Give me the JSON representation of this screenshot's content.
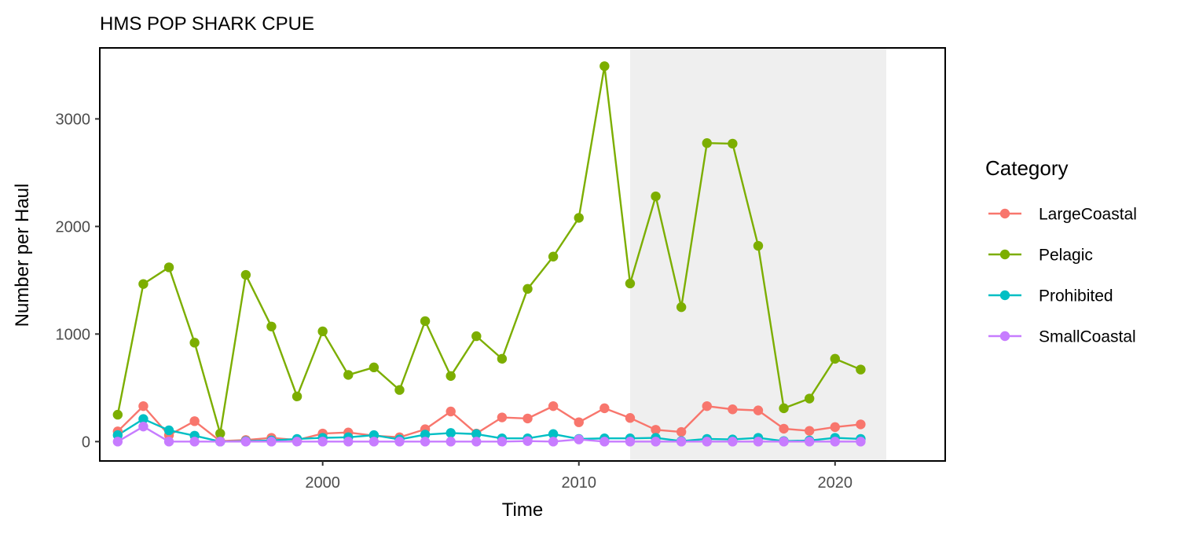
{
  "chart_data": {
    "type": "line",
    "title": "HMS POP SHARK CPUE",
    "xlabel": "Time",
    "ylabel": "Number per Haul",
    "xlim": [
      1991.3,
      2024.3
    ],
    "ylim": [
      -180,
      3660
    ],
    "x_ticks": [
      2000,
      2010,
      2020
    ],
    "y_ticks": [
      0,
      1000,
      2000,
      3000
    ],
    "grid": false,
    "shaded_region": {
      "x_start": 2012,
      "x_end": 2022,
      "color": "#efefef"
    },
    "legend": {
      "title": "Category",
      "position": "right"
    },
    "x": [
      1992,
      1993,
      1994,
      1995,
      1996,
      1997,
      1998,
      1999,
      2000,
      2001,
      2002,
      2003,
      2004,
      2005,
      2006,
      2007,
      2008,
      2009,
      2010,
      2011,
      2012,
      2013,
      2014,
      2015,
      2016,
      2017,
      2018,
      2019,
      2020,
      2021
    ],
    "series": [
      {
        "name": "LargeCoastal",
        "color": "#F8766D",
        "values": [
          95,
          330,
          60,
          190,
          5,
          15,
          35,
          15,
          75,
          85,
          55,
          40,
          115,
          280,
          75,
          225,
          215,
          330,
          180,
          310,
          220,
          110,
          90,
          330,
          300,
          290,
          120,
          100,
          135,
          160
        ]
      },
      {
        "name": "Pelagic",
        "color": "#7CAE00",
        "values": [
          250,
          1465,
          1620,
          920,
          75,
          1550,
          1070,
          420,
          1025,
          620,
          690,
          480,
          1120,
          610,
          980,
          770,
          1420,
          1720,
          2080,
          3490,
          1470,
          2280,
          1250,
          2775,
          2770,
          1820,
          310,
          400,
          770,
          670
        ]
      },
      {
        "name": "Prohibited",
        "color": "#00BFC4",
        "values": [
          60,
          210,
          105,
          55,
          0,
          5,
          10,
          25,
          35,
          40,
          60,
          20,
          65,
          80,
          70,
          30,
          30,
          70,
          25,
          30,
          30,
          35,
          5,
          25,
          20,
          35,
          5,
          10,
          35,
          25
        ]
      },
      {
        "name": "SmallCoastal",
        "color": "#C77CFF",
        "values": [
          0,
          140,
          0,
          0,
          0,
          0,
          0,
          0,
          0,
          0,
          0,
          0,
          0,
          0,
          0,
          0,
          5,
          0,
          20,
          0,
          0,
          0,
          0,
          0,
          0,
          0,
          0,
          0,
          0,
          0
        ]
      }
    ]
  }
}
